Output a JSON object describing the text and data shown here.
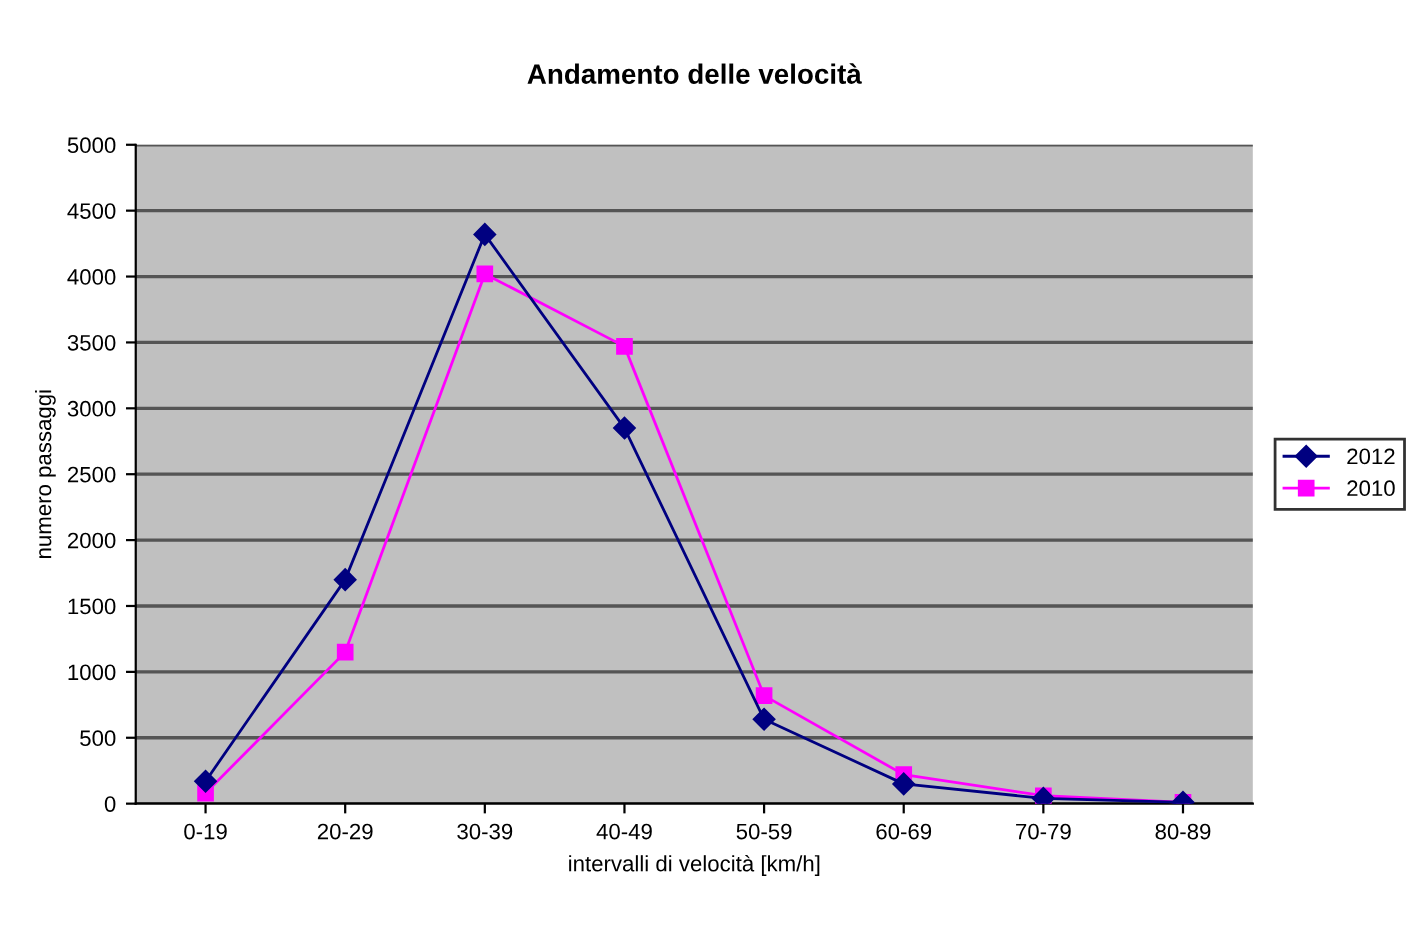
{
  "chart_data": {
    "type": "line",
    "title": "Andamento delle velocità",
    "xlabel": "intervalli di velocità [km/h]",
    "ylabel": "numero passaggi",
    "categories": [
      "0-19",
      "20-29",
      "30-39",
      "40-49",
      "50-59",
      "60-69",
      "70-79",
      "80-89"
    ],
    "series": [
      {
        "name": "2012",
        "color": "#000080",
        "marker": "diamond",
        "values": [
          170,
          1700,
          4320,
          2850,
          640,
          150,
          40,
          10
        ]
      },
      {
        "name": "2010",
        "color": "#ff00ff",
        "marker": "square",
        "values": [
          80,
          1150,
          4020,
          3470,
          820,
          220,
          60,
          10
        ]
      }
    ],
    "ylim": [
      0,
      5000
    ],
    "yticks": [
      0,
      500,
      1000,
      1500,
      2000,
      2500,
      3000,
      3500,
      4000,
      4500,
      5000
    ],
    "grid": "y",
    "legend": "right",
    "line_style": "solid"
  }
}
